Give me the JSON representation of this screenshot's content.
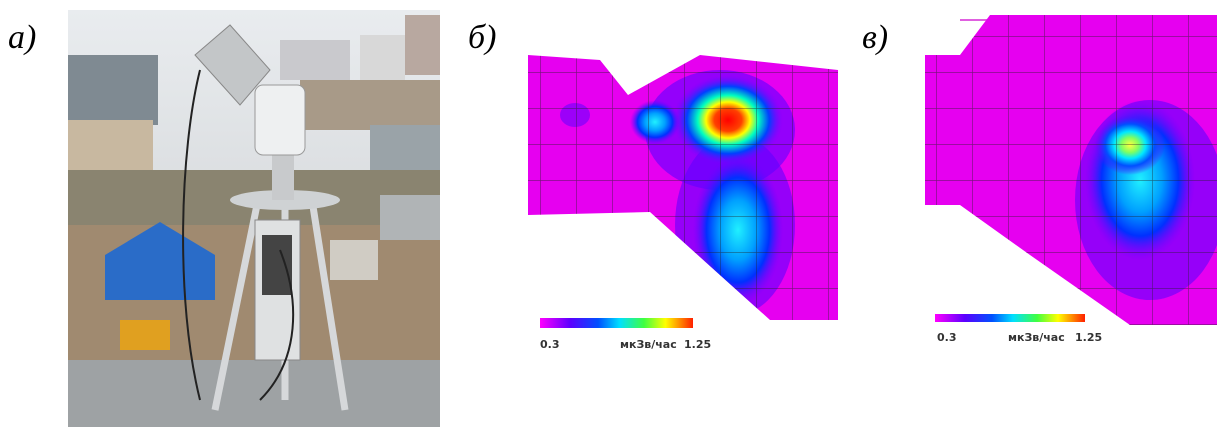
{
  "panels": [
    {
      "label": "а)"
    },
    {
      "label": "б)",
      "colorbar": {
        "min": "0.3",
        "unit": "мкЗв/час",
        "max": "1.25"
      }
    },
    {
      "label": "в)",
      "colorbar": {
        "min": "0.3",
        "unit": "мкЗв/час",
        "max": "1.25"
      }
    }
  ]
}
